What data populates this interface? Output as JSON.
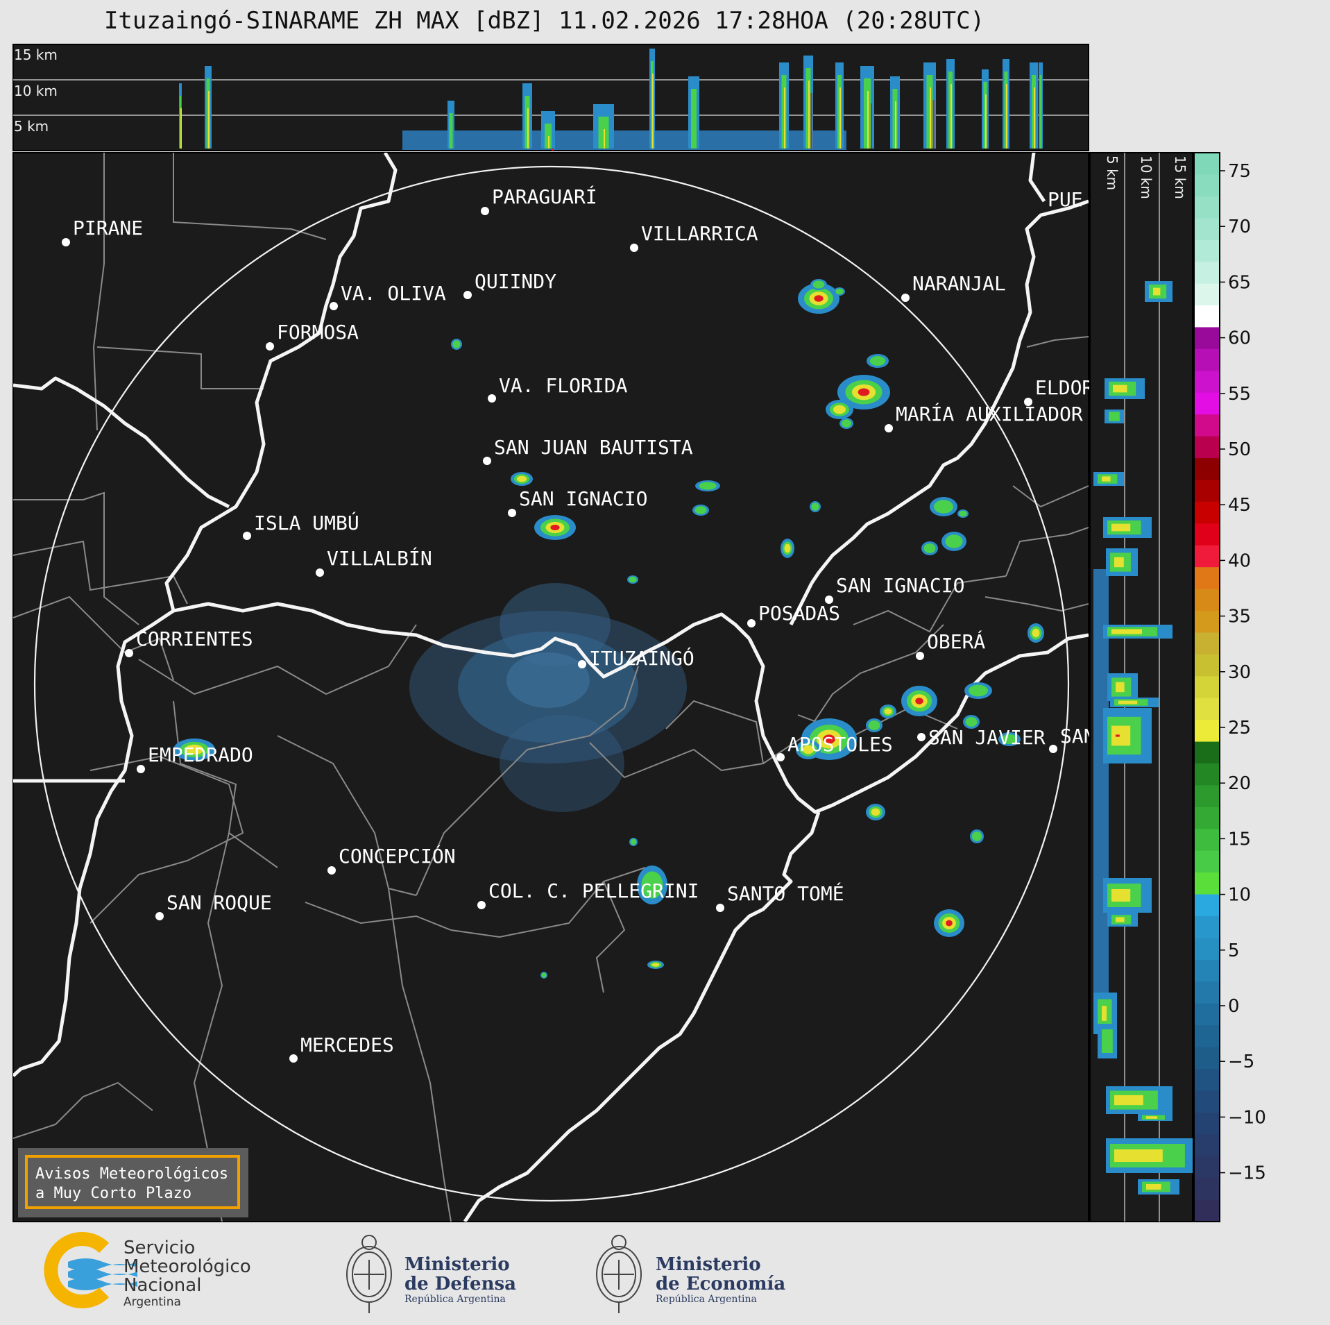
{
  "title": "Ituzaingó-SINARAME ZH MAX [dBZ] 11.02.2026 17:28HOA (20:28UTC)",
  "top_profile": {
    "height_labels": [
      "15 km",
      "10 km",
      "5 km"
    ]
  },
  "side_profile": {
    "height_labels": [
      "5 km",
      "10 km",
      "15 km"
    ]
  },
  "colorbar": {
    "ticks": [
      "75",
      "70",
      "65",
      "60",
      "55",
      "50",
      "45",
      "40",
      "35",
      "30",
      "25",
      "20",
      "15",
      "10",
      "5",
      "0",
      "−5",
      "−10",
      "−15"
    ]
  },
  "places": [
    {
      "name": "PIRANE"
    },
    {
      "name": "PARAGUARÍ"
    },
    {
      "name": "VILLARRICA"
    },
    {
      "name": "VA. OLIVA"
    },
    {
      "name": "QUIINDY"
    },
    {
      "name": "NARANJAL"
    },
    {
      "name": "FORMOSA"
    },
    {
      "name": "VA. FLORIDA"
    },
    {
      "name": "ELDOR"
    },
    {
      "name": "MARÍA AUXILIADOR"
    },
    {
      "name": "SAN JUAN BAUTISTA"
    },
    {
      "name": "SAN IGNACIO"
    },
    {
      "name": "ISLA UMBÚ"
    },
    {
      "name": "VILLALBÍN"
    },
    {
      "name": "SAN IGNACIO"
    },
    {
      "name": "POSADAS"
    },
    {
      "name": "CORRIENTES"
    },
    {
      "name": "ITUZAINGÓ"
    },
    {
      "name": "OBERÁ"
    },
    {
      "name": "APOSTOLES"
    },
    {
      "name": "SAN JAVIER"
    },
    {
      "name": "SAN"
    },
    {
      "name": "EMPEDRADO"
    },
    {
      "name": "CONCEPCIÓN"
    },
    {
      "name": "COL. C. PELLEGRINI"
    },
    {
      "name": "SANTO TOMÉ"
    },
    {
      "name": "SAN ROQUE"
    },
    {
      "name": "MERCEDES"
    },
    {
      "name": "PUE"
    }
  ],
  "warning_box": {
    "line1": "Avisos Meteorológicos",
    "line2": "a Muy Corto Plazo"
  },
  "logos": {
    "smn": {
      "line1": "Servicio",
      "line2": "Meteorológico",
      "line3": "Nacional",
      "line4": "Argentina"
    },
    "defensa": {
      "line1": "Ministerio",
      "line2": "de Defensa",
      "line3": "República Argentina"
    },
    "economia": {
      "line1": "Ministerio",
      "line2": "de Economía",
      "line3": "República Argentina"
    }
  },
  "colors": {
    "plot_bg": "#1b1b1b",
    "page_bg": "#e6e6e6",
    "warning_border": "#f0a000",
    "smn_yellow": "#f5b400",
    "smn_blue": "#3aa0dc",
    "ministry_navy": "#2b3a60"
  }
}
